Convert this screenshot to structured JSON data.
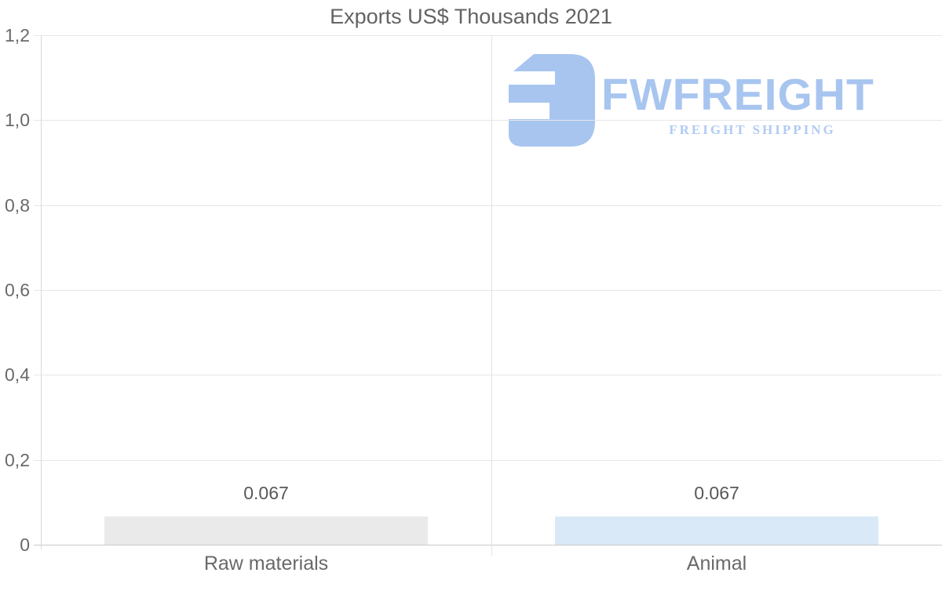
{
  "title": "Exports US$ Thousands 2021",
  "logo": {
    "name": "FWFREIGHT",
    "tagline": "FREIGHT SHIPPING",
    "mark_color": "#a8c5f0",
    "wordmark_color": "#a8c5f0",
    "tagline_color": "#b1cbf2"
  },
  "chart_data": {
    "type": "bar",
    "title": "Exports US$ Thousands 2021",
    "categories": [
      "Raw materials",
      "Animal"
    ],
    "values": [
      0.067,
      0.067
    ],
    "value_labels": [
      "0.067",
      "0.067"
    ],
    "bar_colors": [
      "#eaeaea",
      "#d9e9f8"
    ],
    "xlabel": "",
    "ylabel": "",
    "ylim": [
      0,
      1.2
    ],
    "yticks": [
      {
        "value": 1.2,
        "label": "1,2"
      },
      {
        "value": 1.0,
        "label": "1,0"
      },
      {
        "value": 0.8,
        "label": "0,8"
      },
      {
        "value": 0.6,
        "label": "0,6"
      },
      {
        "value": 0.4,
        "label": "0,4"
      },
      {
        "value": 0.2,
        "label": "0,2"
      },
      {
        "value": 0.0,
        "label": "0"
      }
    ],
    "grid": true,
    "legend": false,
    "grid_color": "#e7e7e7",
    "axis_color": "#d9d9d9",
    "text_color": "#666666"
  }
}
